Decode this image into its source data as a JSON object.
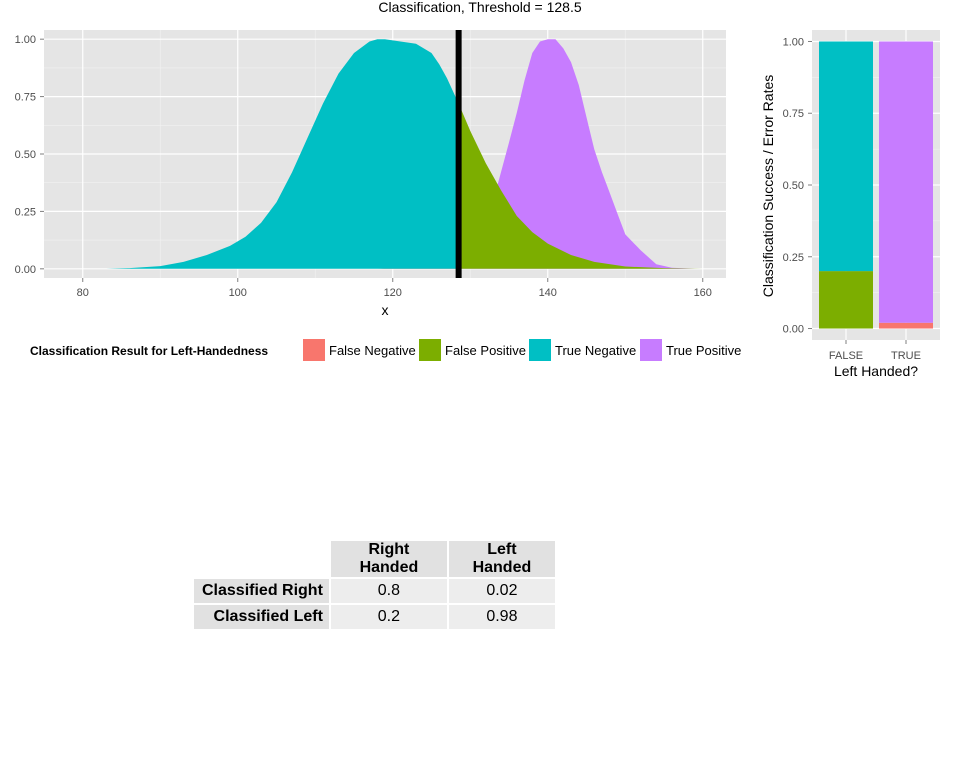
{
  "chart_data": [
    {
      "type": "area",
      "title": "Classification, Threshold = 128.5",
      "xlabel": "x",
      "ylabel": "",
      "xlim": [
        75,
        163
      ],
      "ylim": [
        -0.04,
        1.04
      ],
      "x_ticks": [
        80,
        100,
        120,
        140,
        160
      ],
      "y_ticks": [
        "0.00",
        "0.25",
        "0.50",
        "0.75",
        "1.00"
      ],
      "threshold": 128.5,
      "grid": true,
      "legend": {
        "title": "Classification Result for Left-Handedness",
        "placement": "bottom",
        "entries": [
          {
            "label": "False Negative",
            "color": "#F8766D"
          },
          {
            "label": "False Positive",
            "color": "#7CAE00"
          },
          {
            "label": "True Negative",
            "color": "#00BFC4"
          },
          {
            "label": "True Positive",
            "color": "#C77CFF"
          }
        ]
      },
      "series": [
        {
          "name": "Right Handed",
          "x": [
            83,
            86,
            90,
            93,
            96,
            99,
            101,
            103,
            105,
            107,
            109,
            111,
            113,
            115,
            117,
            118,
            119,
            121,
            123,
            125,
            126,
            127,
            128.5,
            130,
            132,
            134,
            136,
            138,
            140,
            143,
            146,
            150,
            155,
            160
          ],
          "y": [
            0,
            0.003,
            0.012,
            0.03,
            0.06,
            0.1,
            0.14,
            0.2,
            0.29,
            0.42,
            0.57,
            0.72,
            0.85,
            0.94,
            0.99,
            1.0,
            1.0,
            0.99,
            0.98,
            0.94,
            0.89,
            0.83,
            0.72,
            0.6,
            0.46,
            0.34,
            0.23,
            0.16,
            0.11,
            0.06,
            0.03,
            0.01,
            0.003,
            0
          ]
        },
        {
          "name": "Left Handed",
          "x": [
            118,
            121,
            124,
            126,
            128.5,
            131,
            133,
            135,
            136,
            137,
            138,
            139,
            140,
            141,
            142,
            143,
            144,
            145,
            146,
            147,
            148,
            149,
            150,
            152,
            154,
            156,
            159
          ],
          "y": [
            0,
            0.005,
            0.025,
            0.05,
            0.1,
            0.18,
            0.3,
            0.55,
            0.68,
            0.82,
            0.94,
            0.99,
            1.0,
            1.0,
            0.96,
            0.9,
            0.8,
            0.66,
            0.52,
            0.42,
            0.33,
            0.24,
            0.15,
            0.08,
            0.02,
            0.005,
            0
          ]
        }
      ]
    },
    {
      "type": "bar",
      "stacked": true,
      "title": "",
      "xlabel": "Left Handed?",
      "ylabel": "Classification Success / Error Rates",
      "categories": [
        "FALSE",
        "TRUE"
      ],
      "ylim": [
        -0.04,
        1.04
      ],
      "y_ticks": [
        "0.00",
        "0.25",
        "0.50",
        "0.75",
        "1.00"
      ],
      "series": [
        {
          "name": "False Positive",
          "color": "#7CAE00",
          "values": [
            0.2,
            0
          ]
        },
        {
          "name": "True Negative",
          "color": "#00BFC4",
          "values": [
            0.8,
            0
          ]
        },
        {
          "name": "False Negative",
          "color": "#F8766D",
          "values": [
            0,
            0.02
          ]
        },
        {
          "name": "True Positive",
          "color": "#C77CFF",
          "values": [
            0,
            0.98
          ]
        }
      ]
    }
  ],
  "confusion_table": {
    "columns": [
      "Right Handed",
      "Left Handed"
    ],
    "rows": [
      {
        "label": "Classified Right",
        "values": [
          "0.8",
          "0.02"
        ]
      },
      {
        "label": "Classified Left",
        "values": [
          "0.2",
          "0.98"
        ]
      }
    ]
  }
}
